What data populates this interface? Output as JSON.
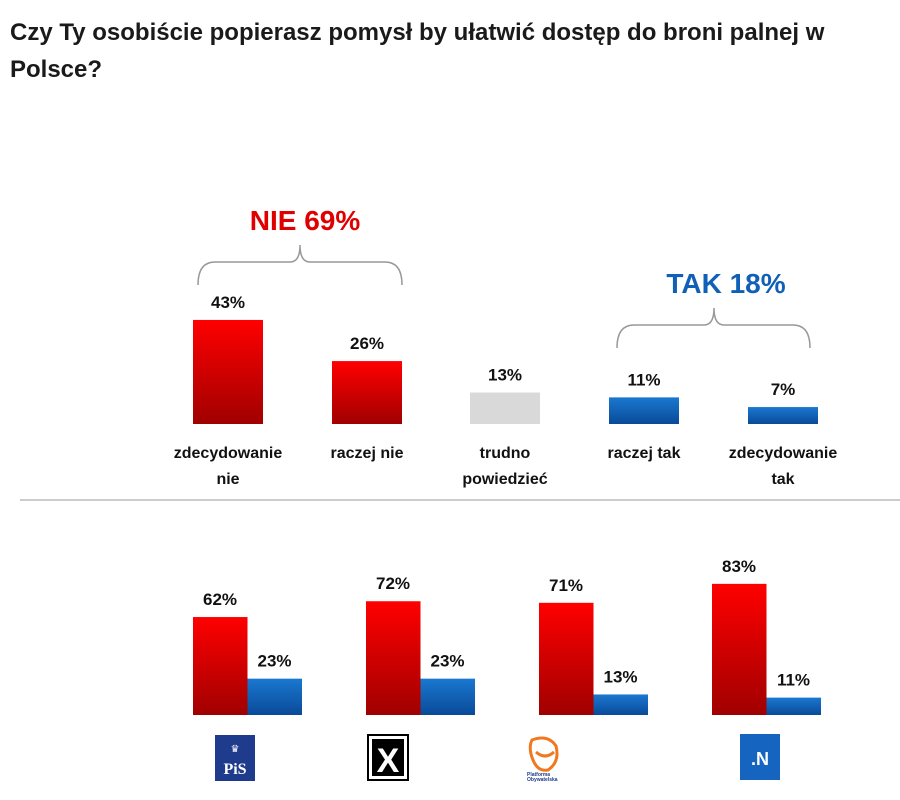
{
  "title": "Czy Ty osobiście popierasz pomysł by ułatwić dostęp do broni palnej w Polsce?",
  "colors": {
    "no": "#e00000",
    "yes": "#1060b8",
    "neutral": "#d9d9d9"
  },
  "chart_data": [
    {
      "type": "bar",
      "title": "Czy Ty osobiście popierasz pomysł by ułatwić dostęp do broni palnej w Polsce?",
      "categories": [
        [
          "zdecydowanie",
          "nie"
        ],
        [
          "raczej nie"
        ],
        [
          "trudno",
          "powiedzieć"
        ],
        [
          "raczej tak"
        ],
        [
          "zdecydowanie",
          "tak"
        ]
      ],
      "values": [
        43,
        26,
        13,
        11,
        7
      ],
      "value_labels": [
        "43%",
        "26%",
        "13%",
        "11%",
        "7%"
      ],
      "groups": [
        {
          "label": "NIE 69%",
          "members": [
            0,
            1
          ],
          "color": "no"
        },
        {
          "label": "TAK 18%",
          "members": [
            3,
            4
          ],
          "color": "yes"
        }
      ],
      "bar_colors": [
        "no",
        "no",
        "neutral",
        "yes",
        "yes"
      ],
      "ylim": [
        0,
        50
      ]
    },
    {
      "type": "bar",
      "title": "",
      "categories": [
        "PiS",
        "Kukiz'15",
        "Platforma Obywatelska",
        ".N"
      ],
      "series": [
        {
          "name": "NIE",
          "values": [
            62,
            72,
            71,
            83
          ],
          "labels": [
            "62%",
            "72%",
            "71%",
            "83%"
          ]
        },
        {
          "name": "TAK",
          "values": [
            23,
            23,
            13,
            11
          ],
          "labels": [
            "23%",
            "23%",
            "13%",
            "11%"
          ]
        }
      ],
      "ylim": [
        0,
        100
      ]
    }
  ],
  "logos": {
    "pis": "PiS",
    "kukiz": "X",
    "po": [
      "Platforma",
      "Obywatelska"
    ],
    "n": ".N"
  }
}
